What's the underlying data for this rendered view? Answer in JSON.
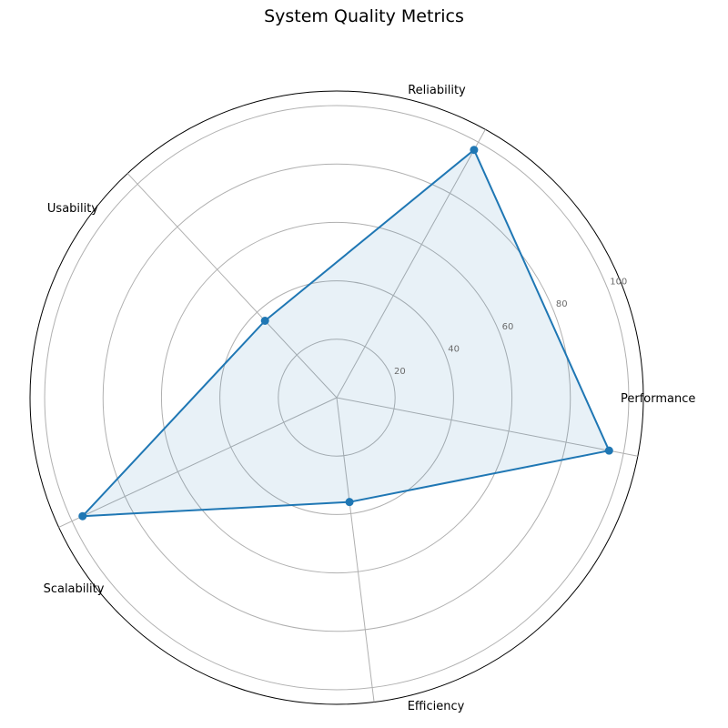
{
  "chart_data": {
    "type": "radar",
    "title": "System Quality Metrics",
    "categories": [
      "Performance",
      "Reliability",
      "Usability",
      "Scalability",
      "Efficiency"
    ],
    "series": [
      {
        "values": [
          95,
          97,
          36,
          96,
          36
        ]
      }
    ],
    "rlim": [
      0,
      105
    ],
    "rticks": [
      20,
      40,
      60,
      80,
      100
    ],
    "grid": true,
    "colors": {
      "line": "#1f77b4",
      "fill": "#1f77b4",
      "grid": "#b0b0b0"
    }
  }
}
